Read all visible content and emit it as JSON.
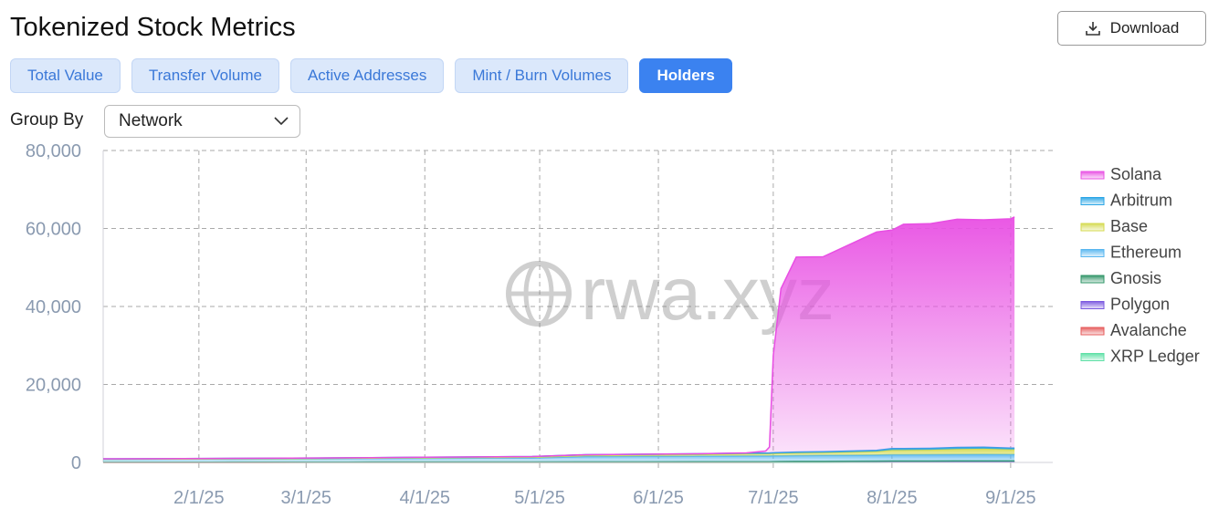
{
  "header": {
    "title": "Tokenized Stock Metrics",
    "download": "Download"
  },
  "tabs": [
    "Total Value",
    "Transfer Volume",
    "Active Addresses",
    "Mint / Burn Volumes",
    "Holders"
  ],
  "active_tab": 4,
  "group_by": {
    "label": "Group By",
    "value": "Network"
  },
  "chart_data": {
    "type": "stacked-area",
    "watermark": "rwa.xyz",
    "x": [
      "1/7/25",
      "1/21/25",
      "2/4/25",
      "2/18/25",
      "3/4/25",
      "3/18/25",
      "4/1/25",
      "4/15/25",
      "4/29/25",
      "5/13/25",
      "5/27/25",
      "6/10/25",
      "6/24/25",
      "6/29/25",
      "6/30/25",
      "7/1/25",
      "7/3/25",
      "7/7/25",
      "7/14/25",
      "7/21/25",
      "7/28/25",
      "8/1/25",
      "8/4/25",
      "8/11/25",
      "8/18/25",
      "8/25/25",
      "9/1/25",
      "9/2/25"
    ],
    "xlim": [
      "1/7/25",
      "9/12/25"
    ],
    "xticks": [
      "2/1/25",
      "3/1/25",
      "4/1/25",
      "5/1/25",
      "6/1/25",
      "7/1/25",
      "8/1/25",
      "9/1/25"
    ],
    "ylim": [
      0,
      80000
    ],
    "yticks": [
      0,
      {
        "value": 20000,
        "label": "20,000"
      },
      {
        "value": 40000,
        "label": "40,000"
      },
      {
        "value": 60000,
        "label": "60,000"
      },
      {
        "value": 80000,
        "label": "80,000"
      }
    ],
    "grid": true,
    "legend": "right",
    "series": [
      {
        "name": "Solana",
        "color": "#e84fe3",
        "values": [
          0,
          0,
          0,
          0,
          0,
          0,
          0,
          0,
          0,
          0,
          0,
          0,
          50,
          500,
          1500,
          25000,
          42000,
          50000,
          50000,
          53000,
          56000,
          56000,
          57500,
          57600,
          58500,
          58300,
          58800,
          59300
        ]
      },
      {
        "name": "Arbitrum",
        "color": "#2aa5e6",
        "values": [
          100,
          100,
          110,
          110,
          120,
          130,
          140,
          150,
          160,
          200,
          210,
          220,
          230,
          230,
          230,
          240,
          250,
          260,
          270,
          280,
          300,
          400,
          400,
          380,
          400,
          400,
          350,
          350
        ]
      },
      {
        "name": "Base",
        "color": "#d4da4e",
        "values": [
          50,
          60,
          70,
          80,
          100,
          120,
          150,
          180,
          200,
          300,
          350,
          400,
          500,
          520,
          530,
          550,
          600,
          650,
          700,
          800,
          900,
          1200,
          1200,
          1250,
          1400,
          1450,
          1300,
          1300
        ]
      },
      {
        "name": "Ethereum",
        "color": "#57b6f0",
        "values": [
          700,
          720,
          750,
          780,
          800,
          850,
          900,
          950,
          1000,
          1300,
          1350,
          1400,
          1450,
          1450,
          1450,
          1460,
          1460,
          1480,
          1500,
          1520,
          1550,
          1600,
          1600,
          1620,
          1650,
          1650,
          1600,
          1600
        ]
      },
      {
        "name": "Gnosis",
        "color": "#2e9466",
        "values": [
          50,
          50,
          60,
          60,
          60,
          70,
          70,
          80,
          80,
          100,
          100,
          110,
          120,
          120,
          120,
          130,
          140,
          150,
          160,
          170,
          180,
          200,
          200,
          200,
          210,
          220,
          220,
          220
        ]
      },
      {
        "name": "Polygon",
        "color": "#7a58df",
        "values": [
          30,
          30,
          30,
          40,
          40,
          40,
          50,
          50,
          50,
          60,
          60,
          60,
          70,
          70,
          70,
          70,
          70,
          80,
          80,
          80,
          90,
          90,
          90,
          90,
          100,
          100,
          100,
          100
        ]
      },
      {
        "name": "Avalanche",
        "color": "#e65a5a",
        "values": [
          10,
          10,
          10,
          10,
          20,
          20,
          20,
          20,
          20,
          30,
          30,
          30,
          30,
          30,
          30,
          40,
          40,
          40,
          40,
          50,
          50,
          50,
          50,
          50,
          60,
          60,
          60,
          60
        ]
      },
      {
        "name": "XRP Ledger",
        "color": "#5ee0a6",
        "values": [
          0,
          0,
          0,
          0,
          0,
          0,
          0,
          0,
          0,
          0,
          0,
          0,
          0,
          0,
          0,
          0,
          0,
          0,
          10,
          20,
          30,
          40,
          40,
          40,
          50,
          50,
          50,
          50
        ]
      }
    ]
  }
}
